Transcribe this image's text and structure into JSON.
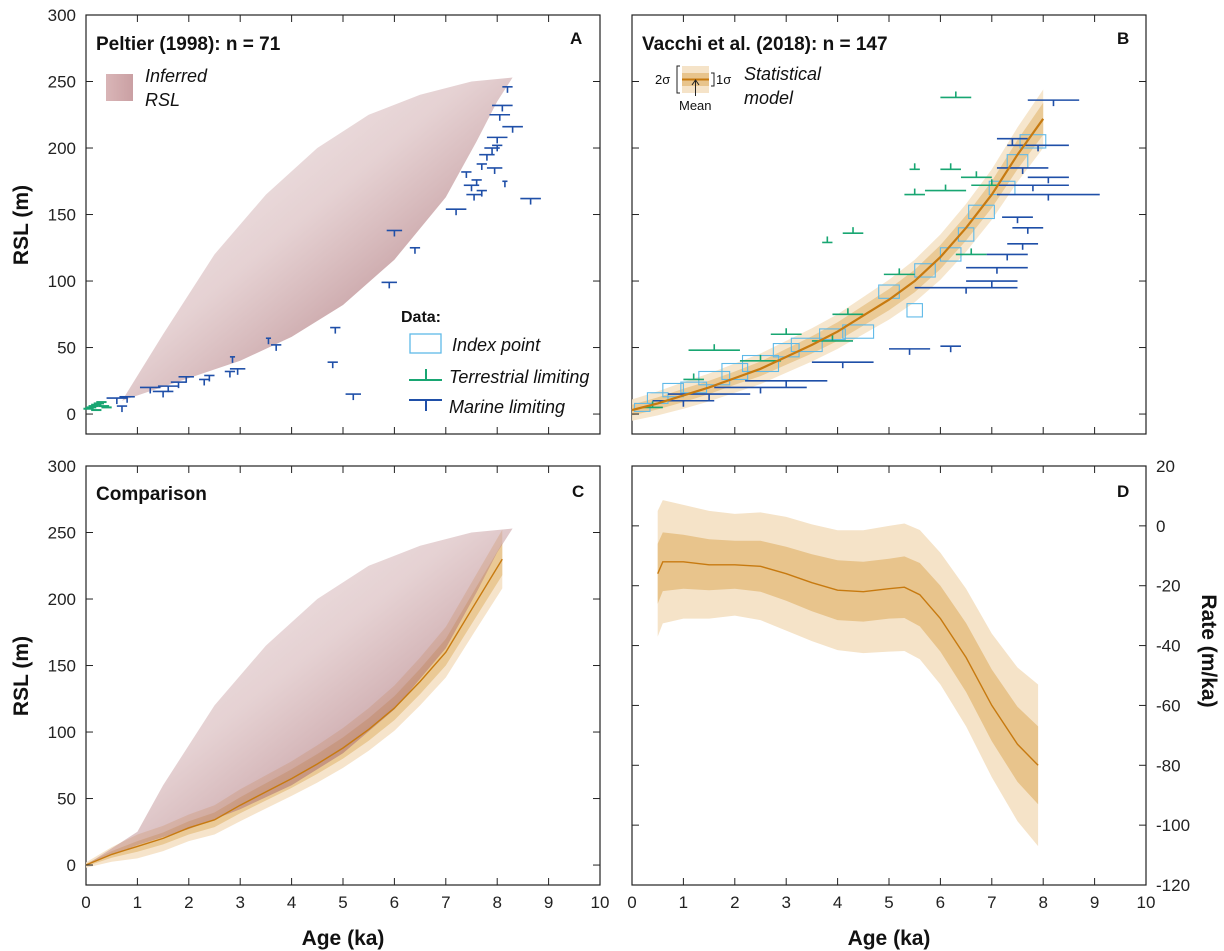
{
  "colors": {
    "brown": "#9c5a5e",
    "fill_outer": "#f5e3c8",
    "fill_inner": "#e8c48c",
    "mean": "#c77a10",
    "index_point": "#5fb9e8",
    "terrestrial": "#18a672",
    "marine": "#1f4fa8",
    "axis": "#222222"
  },
  "chart_data": [
    {
      "panel": "A",
      "type": "scatter",
      "title": "Peltier (1998): n = 71",
      "letter": "A",
      "xlabel": "",
      "ylabel": "RSL (m)",
      "xlim": [
        0,
        10
      ],
      "ylim": [
        -15,
        300
      ],
      "yticks": [
        0,
        50,
        100,
        150,
        200,
        250,
        300
      ],
      "legend": {
        "band_label_1": "Inferred",
        "band_label_2": "RSL",
        "data_header": "Data:",
        "index_point": "Index point",
        "terrestrial": "Terrestrial limiting",
        "marine": "Marine limiting"
      },
      "inferred_rsl_upper": [
        [
          0.7,
          10
        ],
        [
          1.5,
          60
        ],
        [
          2.5,
          120
        ],
        [
          3.5,
          165
        ],
        [
          4.5,
          200
        ],
        [
          5.5,
          225
        ],
        [
          6.5,
          240
        ],
        [
          7.5,
          250
        ],
        [
          8.3,
          253
        ]
      ],
      "inferred_rsl_lower": [
        [
          0.7,
          10
        ],
        [
          2,
          27
        ],
        [
          3,
          40
        ],
        [
          4,
          58
        ],
        [
          5,
          82
        ],
        [
          6,
          116
        ],
        [
          7,
          163
        ],
        [
          7.6,
          205
        ],
        [
          8.0,
          235
        ],
        [
          8.3,
          253
        ]
      ],
      "terrestrial_points": [
        [
          0.05,
          4
        ],
        [
          0.1,
          5
        ],
        [
          0.15,
          6
        ],
        [
          0.2,
          7
        ],
        [
          0.25,
          8
        ],
        [
          0.3,
          9
        ],
        [
          0.35,
          6
        ],
        [
          0.4,
          5
        ],
        [
          0.2,
          3
        ]
      ],
      "marine_points": [
        {
          "age": 0.6,
          "rsl": 12,
          "xerr": 0.2
        },
        {
          "age": 0.8,
          "rsl": 13,
          "xerr": 0.15
        },
        {
          "age": 0.7,
          "rsl": 6,
          "xerr": 0.1
        },
        {
          "age": 1.25,
          "rsl": 20,
          "xerr": 0.2
        },
        {
          "age": 1.5,
          "rsl": 17,
          "xerr": 0.2
        },
        {
          "age": 1.6,
          "rsl": 21,
          "xerr": 0.2
        },
        {
          "age": 1.8,
          "rsl": 24,
          "xerr": 0.15
        },
        {
          "age": 1.95,
          "rsl": 28,
          "xerr": 0.15
        },
        {
          "age": 2.3,
          "rsl": 26,
          "xerr": 0.1
        },
        {
          "age": 2.4,
          "rsl": 29,
          "xerr": 0.1
        },
        {
          "age": 2.8,
          "rsl": 32,
          "xerr": 0.1
        },
        {
          "age": 2.95,
          "rsl": 34,
          "xerr": 0.15
        },
        {
          "age": 2.85,
          "rsl": 43,
          "xerr": 0.05
        },
        {
          "age": 3.55,
          "rsl": 57,
          "xerr": 0.05
        },
        {
          "age": 3.7,
          "rsl": 52,
          "xerr": 0.1
        },
        {
          "age": 4.8,
          "rsl": 39,
          "xerr": 0.1
        },
        {
          "age": 4.85,
          "rsl": 65,
          "xerr": 0.1
        },
        {
          "age": 5.2,
          "rsl": 15,
          "xerr": 0.15
        },
        {
          "age": 5.9,
          "rsl": 99,
          "xerr": 0.15
        },
        {
          "age": 6.0,
          "rsl": 138,
          "xerr": 0.15
        },
        {
          "age": 6.4,
          "rsl": 125,
          "xerr": 0.1
        },
        {
          "age": 7.2,
          "rsl": 154,
          "xerr": 0.2
        },
        {
          "age": 7.5,
          "rsl": 172,
          "xerr": 0.15
        },
        {
          "age": 7.55,
          "rsl": 165,
          "xerr": 0.15
        },
        {
          "age": 7.6,
          "rsl": 176,
          "xerr": 0.1
        },
        {
          "age": 7.7,
          "rsl": 168,
          "xerr": 0.1
        },
        {
          "age": 7.8,
          "rsl": 195,
          "xerr": 0.15
        },
        {
          "age": 7.9,
          "rsl": 200,
          "xerr": 0.15
        },
        {
          "age": 7.95,
          "rsl": 185,
          "xerr": 0.15
        },
        {
          "age": 8.0,
          "rsl": 208,
          "xerr": 0.2
        },
        {
          "age": 8.05,
          "rsl": 225,
          "xerr": 0.2
        },
        {
          "age": 8.1,
          "rsl": 232,
          "xerr": 0.2
        },
        {
          "age": 8.15,
          "rsl": 175,
          "xerr": 0.05
        },
        {
          "age": 8.2,
          "rsl": 246,
          "xerr": 0.1
        },
        {
          "age": 8.3,
          "rsl": 216,
          "xerr": 0.2
        },
        {
          "age": 8.65,
          "rsl": 162,
          "xerr": 0.2
        },
        {
          "age": 7.4,
          "rsl": 182,
          "xerr": 0.1
        },
        {
          "age": 7.7,
          "rsl": 188,
          "xerr": 0.1
        },
        {
          "age": 8.0,
          "rsl": 202,
          "xerr": 0.1
        }
      ]
    },
    {
      "panel": "B",
      "type": "scatter",
      "title": "Vacchi et al. (2018): n = 147",
      "letter": "B",
      "xlabel": "",
      "ylabel": "",
      "xlim": [
        0,
        10
      ],
      "ylim": [
        -15,
        300
      ],
      "legend": {
        "two_sigma": "2σ",
        "one_sigma": "1σ",
        "mean": "Mean",
        "label_1": "Statistical",
        "label_2": "model"
      },
      "mean": [
        [
          0,
          3
        ],
        [
          0.5,
          8
        ],
        [
          1,
          14
        ],
        [
          1.5,
          20
        ],
        [
          2,
          27
        ],
        [
          2.5,
          34
        ],
        [
          3,
          43
        ],
        [
          3.5,
          52
        ],
        [
          4,
          62
        ],
        [
          4.5,
          74
        ],
        [
          5,
          86
        ],
        [
          5.5,
          100
        ],
        [
          6,
          118
        ],
        [
          6.5,
          140
        ],
        [
          7,
          165
        ],
        [
          7.5,
          195
        ],
        [
          8,
          222
        ]
      ],
      "sigma1": [
        [
          0,
          4
        ],
        [
          1,
          5
        ],
        [
          2,
          5
        ],
        [
          3,
          6
        ],
        [
          4,
          7
        ],
        [
          5,
          8
        ],
        [
          6,
          9
        ],
        [
          7,
          10
        ],
        [
          8,
          12
        ]
      ],
      "sigma2": [
        [
          0,
          8
        ],
        [
          1,
          10
        ],
        [
          2,
          11
        ],
        [
          3,
          12
        ],
        [
          4,
          13
        ],
        [
          5,
          15
        ],
        [
          6,
          17
        ],
        [
          7,
          19
        ],
        [
          8,
          22
        ]
      ],
      "index_points": [
        {
          "age": 0.2,
          "rsl": 5,
          "w": 0.3,
          "h": 6
        },
        {
          "age": 0.5,
          "rsl": 12,
          "w": 0.4,
          "h": 8
        },
        {
          "age": 0.8,
          "rsl": 18,
          "w": 0.4,
          "h": 10
        },
        {
          "age": 1.2,
          "rsl": 20,
          "w": 0.5,
          "h": 8
        },
        {
          "age": 1.6,
          "rsl": 27,
          "w": 0.6,
          "h": 10
        },
        {
          "age": 2.0,
          "rsl": 32,
          "w": 0.5,
          "h": 12
        },
        {
          "age": 2.5,
          "rsl": 38,
          "w": 0.7,
          "h": 12
        },
        {
          "age": 3.0,
          "rsl": 48,
          "w": 0.5,
          "h": 10
        },
        {
          "age": 3.4,
          "rsl": 52,
          "w": 0.6,
          "h": 10
        },
        {
          "age": 3.9,
          "rsl": 60,
          "w": 0.5,
          "h": 8
        },
        {
          "age": 4.4,
          "rsl": 62,
          "w": 0.6,
          "h": 10
        },
        {
          "age": 5.0,
          "rsl": 92,
          "w": 0.4,
          "h": 10
        },
        {
          "age": 5.5,
          "rsl": 78,
          "w": 0.3,
          "h": 10
        },
        {
          "age": 5.7,
          "rsl": 108,
          "w": 0.4,
          "h": 10
        },
        {
          "age": 6.2,
          "rsl": 120,
          "w": 0.4,
          "h": 10
        },
        {
          "age": 6.5,
          "rsl": 135,
          "w": 0.3,
          "h": 10
        },
        {
          "age": 6.8,
          "rsl": 152,
          "w": 0.5,
          "h": 10
        },
        {
          "age": 7.2,
          "rsl": 170,
          "w": 0.5,
          "h": 10
        },
        {
          "age": 7.5,
          "rsl": 190,
          "w": 0.4,
          "h": 10
        },
        {
          "age": 7.8,
          "rsl": 205,
          "w": 0.5,
          "h": 10
        }
      ],
      "terrestrial_points": [
        {
          "age": 0.4,
          "rsl": 5,
          "xerr": 0.2
        },
        {
          "age": 1.2,
          "rsl": 26,
          "xerr": 0.2
        },
        {
          "age": 1.6,
          "rsl": 48,
          "xerr": 0.5
        },
        {
          "age": 2.5,
          "rsl": 40,
          "xerr": 0.4
        },
        {
          "age": 3.0,
          "rsl": 60,
          "xerr": 0.3
        },
        {
          "age": 3.9,
          "rsl": 55,
          "xerr": 0.4
        },
        {
          "age": 4.2,
          "rsl": 75,
          "xerr": 0.3
        },
        {
          "age": 4.3,
          "rsl": 136,
          "xerr": 0.2
        },
        {
          "age": 3.8,
          "rsl": 129,
          "xerr": 0.1
        },
        {
          "age": 5.2,
          "rsl": 105,
          "xerr": 0.3
        },
        {
          "age": 5.5,
          "rsl": 165,
          "xerr": 0.2
        },
        {
          "age": 5.5,
          "rsl": 184,
          "xerr": 0.1
        },
        {
          "age": 6.1,
          "rsl": 168,
          "xerr": 0.4
        },
        {
          "age": 6.2,
          "rsl": 184,
          "xerr": 0.2
        },
        {
          "age": 6.3,
          "rsl": 238,
          "xerr": 0.3
        },
        {
          "age": 6.7,
          "rsl": 178,
          "xerr": 0.3
        },
        {
          "age": 6.6,
          "rsl": 120,
          "xerr": 0.3
        },
        {
          "age": 7.0,
          "rsl": 172,
          "xerr": 0.4
        }
      ],
      "marine_points": [
        {
          "age": 1.0,
          "rsl": 10,
          "xerr": 0.6
        },
        {
          "age": 1.5,
          "rsl": 15,
          "xerr": 0.8
        },
        {
          "age": 2.5,
          "rsl": 20,
          "xerr": 0.9
        },
        {
          "age": 3.0,
          "rsl": 25,
          "xerr": 0.8
        },
        {
          "age": 4.1,
          "rsl": 39,
          "xerr": 0.6
        },
        {
          "age": 5.4,
          "rsl": 49,
          "xerr": 0.4
        },
        {
          "age": 6.2,
          "rsl": 51,
          "xerr": 0.2
        },
        {
          "age": 6.5,
          "rsl": 95,
          "xerr": 1.0
        },
        {
          "age": 7.0,
          "rsl": 100,
          "xerr": 0.5
        },
        {
          "age": 7.1,
          "rsl": 110,
          "xerr": 0.6
        },
        {
          "age": 7.3,
          "rsl": 120,
          "xerr": 0.4
        },
        {
          "age": 7.6,
          "rsl": 128,
          "xerr": 0.3
        },
        {
          "age": 7.7,
          "rsl": 140,
          "xerr": 0.3
        },
        {
          "age": 7.5,
          "rsl": 148,
          "xerr": 0.3
        },
        {
          "age": 8.1,
          "rsl": 165,
          "xerr": 1.0
        },
        {
          "age": 7.8,
          "rsl": 172,
          "xerr": 0.7
        },
        {
          "age": 7.6,
          "rsl": 185,
          "xerr": 0.5
        },
        {
          "age": 7.9,
          "rsl": 202,
          "xerr": 0.6
        },
        {
          "age": 8.2,
          "rsl": 236,
          "xerr": 0.5
        },
        {
          "age": 7.4,
          "rsl": 207,
          "xerr": 0.3
        },
        {
          "age": 8.1,
          "rsl": 178,
          "xerr": 0.4
        }
      ]
    },
    {
      "panel": "C",
      "type": "area",
      "title": "Comparison",
      "letter": "C",
      "xlabel": "Age (ka)",
      "ylabel": "RSL (m)",
      "xlim": [
        0,
        10
      ],
      "ylim": [
        -15,
        300
      ],
      "xticks": [
        0,
        1,
        2,
        3,
        4,
        5,
        6,
        7,
        8,
        9,
        10
      ],
      "yticks": [
        0,
        50,
        100,
        150,
        200,
        250,
        300
      ],
      "inferred_rsl_upper": [
        [
          0,
          0
        ],
        [
          1,
          25
        ],
        [
          1.5,
          60
        ],
        [
          2.5,
          120
        ],
        [
          3.5,
          165
        ],
        [
          4.5,
          200
        ],
        [
          5.5,
          225
        ],
        [
          6.5,
          240
        ],
        [
          7.5,
          250
        ],
        [
          8.3,
          253
        ]
      ],
      "inferred_rsl_lower": [
        [
          0,
          0
        ],
        [
          1,
          15
        ],
        [
          2,
          27
        ],
        [
          3,
          42
        ],
        [
          4,
          60
        ],
        [
          5,
          84
        ],
        [
          6,
          117
        ],
        [
          7,
          163
        ],
        [
          7.6,
          205
        ],
        [
          8.0,
          235
        ],
        [
          8.3,
          253
        ]
      ],
      "mean": [
        [
          0,
          0
        ],
        [
          0.5,
          8
        ],
        [
          1,
          14
        ],
        [
          1.5,
          20
        ],
        [
          2,
          28
        ],
        [
          2.5,
          34
        ],
        [
          3,
          45
        ],
        [
          3.5,
          55
        ],
        [
          4,
          65
        ],
        [
          4.5,
          76
        ],
        [
          5,
          88
        ],
        [
          5.5,
          102
        ],
        [
          6,
          118
        ],
        [
          6.5,
          138
        ],
        [
          7,
          160
        ],
        [
          7.5,
          192
        ],
        [
          8.1,
          230
        ]
      ],
      "sigma1": [
        [
          0,
          1
        ],
        [
          1,
          4
        ],
        [
          2,
          5
        ],
        [
          3,
          6
        ],
        [
          4,
          7
        ],
        [
          5,
          8
        ],
        [
          6,
          9
        ],
        [
          7,
          10
        ],
        [
          8.1,
          12
        ]
      ],
      "sigma2": [
        [
          0,
          2
        ],
        [
          1,
          9
        ],
        [
          2,
          10
        ],
        [
          3,
          12
        ],
        [
          4,
          13
        ],
        [
          5,
          15
        ],
        [
          6,
          17
        ],
        [
          7,
          19
        ],
        [
          8.1,
          22
        ]
      ]
    },
    {
      "panel": "D",
      "type": "area",
      "title": "",
      "letter": "D",
      "xlabel": "Age (ka)",
      "ylabel": "Rate (m/ka)",
      "xlim": [
        0,
        10
      ],
      "ylim": [
        -120,
        20
      ],
      "xticks": [
        0,
        1,
        2,
        3,
        4,
        5,
        6,
        7,
        8,
        9,
        10
      ],
      "yticks": [
        20,
        0,
        -20,
        -40,
        -60,
        -80,
        -100,
        -120
      ],
      "mean": [
        [
          0.5,
          -16
        ],
        [
          0.6,
          -12
        ],
        [
          1,
          -12
        ],
        [
          1.5,
          -13
        ],
        [
          2,
          -13
        ],
        [
          2.5,
          -13.5
        ],
        [
          3,
          -16
        ],
        [
          3.5,
          -19
        ],
        [
          4,
          -21.5
        ],
        [
          4.5,
          -22
        ],
        [
          5,
          -21
        ],
        [
          5.3,
          -20.5
        ],
        [
          5.6,
          -23
        ],
        [
          6,
          -31
        ],
        [
          6.5,
          -44
        ],
        [
          7,
          -60
        ],
        [
          7.5,
          -73
        ],
        [
          7.9,
          -80
        ]
      ],
      "sigma1": [
        [
          0.5,
          10
        ],
        [
          1,
          9
        ],
        [
          2,
          8
        ],
        [
          3,
          9
        ],
        [
          4,
          10
        ],
        [
          5,
          10
        ],
        [
          6,
          11
        ],
        [
          7,
          12
        ],
        [
          7.9,
          13
        ]
      ],
      "sigma2": [
        [
          0.5,
          21
        ],
        [
          1,
          19
        ],
        [
          2,
          17
        ],
        [
          3,
          19
        ],
        [
          4,
          20
        ],
        [
          5,
          21
        ],
        [
          6,
          22
        ],
        [
          7,
          24
        ],
        [
          7.9,
          27
        ]
      ]
    }
  ]
}
